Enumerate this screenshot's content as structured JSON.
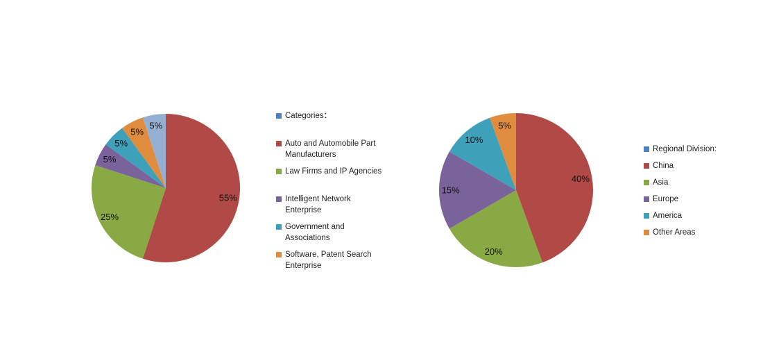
{
  "chart_data": [
    {
      "type": "pie",
      "name": "categories-pie",
      "legend_position": "right",
      "legend": [
        {
          "label": "Categories：",
          "color": "#4F81BD",
          "role": "series-title"
        },
        {
          "label": "Auto and Automobile Part\nManufacturers",
          "color": "#B14A47"
        },
        {
          "label": "Law Firms and IP Agencies",
          "color": "#88A943"
        },
        {
          "label": "Intelligent Network\nEnterprise",
          "color": "#7A629B"
        },
        {
          "label": "Government and\nAssociations",
          "color": "#3FA0BA"
        },
        {
          "label": "Software, Patent Search\nEnterprise",
          "color": "#E08C3E"
        }
      ],
      "slices": [
        {
          "name": "Auto and Automobile Part Manufacturers",
          "value": 55,
          "label": "55%",
          "color": "#B14A47"
        },
        {
          "name": "Law Firms and IP Agencies",
          "value": 25,
          "label": "25%",
          "color": "#88A943"
        },
        {
          "name": "Intelligent Network Enterprise",
          "value": 5,
          "label": "5%",
          "color": "#7A629B"
        },
        {
          "name": "Government and Associations",
          "value": 5,
          "label": "5%",
          "color": "#3FA0BA"
        },
        {
          "name": "Software, Patent Search Enterprise",
          "value": 5,
          "label": "5%",
          "color": "#E08C3E"
        },
        {
          "name": "",
          "value": 5,
          "label": "5%",
          "color": "#95AFD3"
        }
      ]
    },
    {
      "type": "pie",
      "name": "regional-division-pie",
      "legend_position": "right",
      "legend": [
        {
          "label": "Regional Division:",
          "color": "#4F81BD",
          "role": "series-title"
        },
        {
          "label": "China",
          "color": "#B14A47"
        },
        {
          "label": "Asia",
          "color": "#88A943"
        },
        {
          "label": "Europe",
          "color": "#7A629B"
        },
        {
          "label": "America",
          "color": "#3FA0BA"
        },
        {
          "label": "Other Areas",
          "color": "#E08C3E"
        }
      ],
      "slices": [
        {
          "name": "China",
          "value": 40,
          "label": "40%",
          "color": "#B14A47"
        },
        {
          "name": "Asia",
          "value": 20,
          "label": "20%",
          "color": "#88A943"
        },
        {
          "name": "Europe",
          "value": 15,
          "label": "15%",
          "color": "#7A629B"
        },
        {
          "name": "America",
          "value": 10,
          "label": "10%",
          "color": "#3FA0BA"
        },
        {
          "name": "Other Areas",
          "value": 5,
          "label": "5%",
          "color": "#E08C3E"
        }
      ]
    }
  ]
}
